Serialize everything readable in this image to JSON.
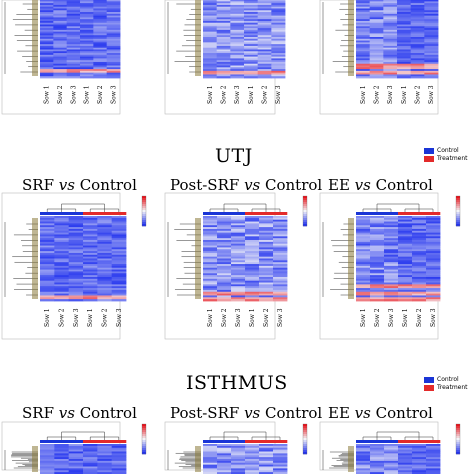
{
  "colors": {
    "control": "#1a35d6",
    "treatment": "#e32a2a",
    "low": "#2233ee",
    "mid": "#f4f4f8",
    "high": "#e8121a"
  },
  "sample_labels": [
    "Sow 1",
    "Sow 2",
    "Sow 3",
    "Sow 1",
    "Sow 2",
    "Sow 3"
  ],
  "legend": {
    "control": "Control",
    "treatment": "Treatment"
  },
  "sections": [
    {
      "title": "",
      "panels": [
        {
          "title": ""
        },
        {
          "title": ""
        },
        {
          "title": ""
        }
      ]
    },
    {
      "title": "UTJ",
      "panels": [
        {
          "title": "SRF vs Control"
        },
        {
          "title": "Post-SRF vs Control"
        },
        {
          "title": "EE vs Control"
        }
      ]
    },
    {
      "title": "ISTHMUS",
      "panels": [
        {
          "title": "SRF vs Control"
        },
        {
          "title": "Post-SRF vs Control"
        },
        {
          "title": "EE vs Control"
        }
      ]
    }
  ],
  "chart_data": {
    "type": "heatmap",
    "columns": [
      "Sow 1",
      "Sow 2",
      "Sow 3",
      "Sow 1",
      "Sow 2",
      "Sow 3"
    ],
    "groups": [
      "Control",
      "Control",
      "Control",
      "Treatment",
      "Treatment",
      "Treatment"
    ],
    "color_scale": [
      "low",
      "mid",
      "high"
    ],
    "panels": [
      "Top row panel 1",
      "Top row panel 2",
      "Top row panel 3",
      "UTJ SRF vs Control",
      "UTJ Post-SRF vs Control",
      "UTJ EE vs Control",
      "ISTHMUS SRF vs Control",
      "ISTHMUS Post-SRF vs Control",
      "ISTHMUS EE vs Control"
    ]
  }
}
